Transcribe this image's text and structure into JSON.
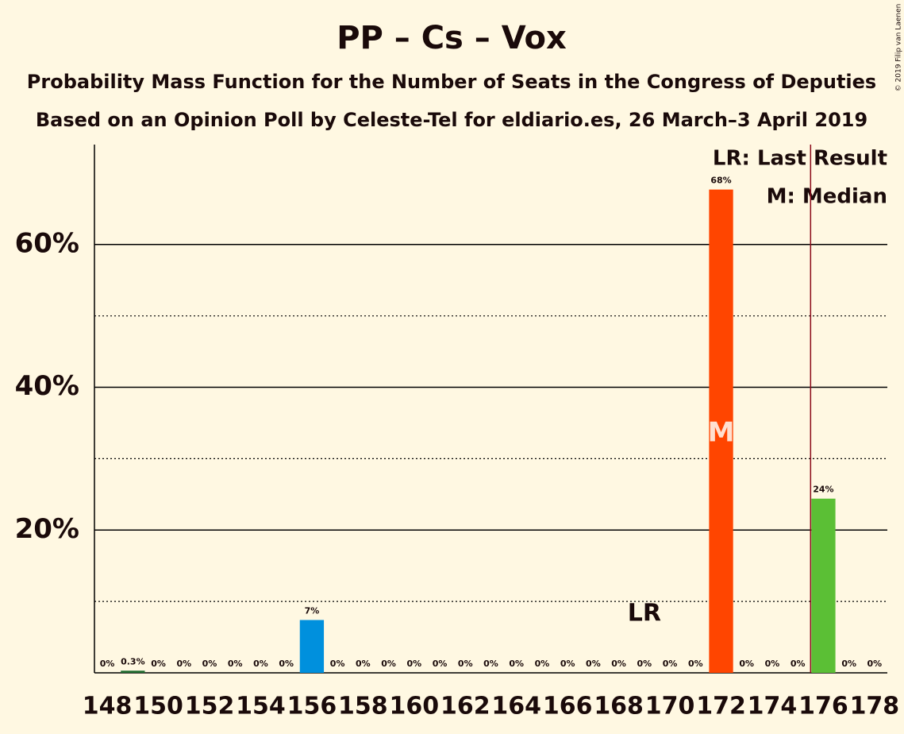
{
  "chart_data": {
    "type": "bar",
    "title": "PP – Cs – Vox",
    "subtitle": "Probability Mass Function for the Number of Seats in the Congress of Deputies",
    "subtitle2": "Based on an Opinion Poll by Celeste-Tel for eldiario.es, 26 March–3 April 2019",
    "copyright": "© 2019 Filip van Laenen",
    "categories": [
      148,
      null,
      150,
      null,
      152,
      null,
      154,
      null,
      156,
      null,
      158,
      null,
      160,
      null,
      162,
      null,
      164,
      null,
      166,
      null,
      168,
      null,
      170,
      null,
      172,
      null,
      174,
      null,
      176,
      null,
      178
    ],
    "values": [
      0,
      0.3,
      0,
      0,
      0,
      0,
      0,
      0,
      7.4,
      0,
      0,
      0,
      0,
      0,
      0,
      0,
      0,
      0,
      0,
      0,
      0,
      0,
      0,
      0,
      67.7,
      0,
      0,
      0,
      24.4,
      0,
      0
    ],
    "value_labels": [
      "0%",
      "0.3%",
      "0%",
      "0%",
      "0%",
      "0%",
      "0%",
      "0%",
      "7%",
      "0%",
      "0%",
      "0%",
      "0%",
      "0%",
      "0%",
      "0%",
      "0%",
      "0%",
      "0%",
      "0%",
      "0%",
      "0%",
      "0%",
      "0%",
      "68%",
      "0%",
      "0%",
      "0%",
      "24%",
      "0%",
      "0%"
    ],
    "colors": [
      "#1f6b2f",
      "#1f6b2f",
      "#0090dd",
      "#0090dd",
      "#0090dd",
      "#0090dd",
      "#0090dd",
      "#0090dd",
      "#0090dd",
      "#0090dd",
      "#0090dd",
      "#0090dd",
      "#0090dd",
      "#0090dd",
      "#0090dd",
      "#0090dd",
      "#ff4500",
      "#ff4500",
      "#ff4500",
      "#ff4500",
      "#ff4500",
      "#ff4500",
      "#ff4500",
      "#ff4500",
      "#ff4500",
      "#ff4500",
      "#ff4500",
      "#ff4500",
      "#5bbf35",
      "#5bbf35",
      "#5bbf35"
    ],
    "ylim": [
      0,
      74
    ],
    "yticks": [
      {
        "value": 20,
        "label": "20%"
      },
      {
        "value": 40,
        "label": "40%"
      },
      {
        "value": 60,
        "label": "60%"
      }
    ],
    "minor_yticks": [
      10,
      30,
      50
    ],
    "last_result": {
      "index": 21,
      "label": "LR"
    },
    "median": {
      "index": 24,
      "label": "M"
    },
    "majority_index": 28,
    "legend": [
      "LR: Last Result",
      "M: Median"
    ]
  }
}
